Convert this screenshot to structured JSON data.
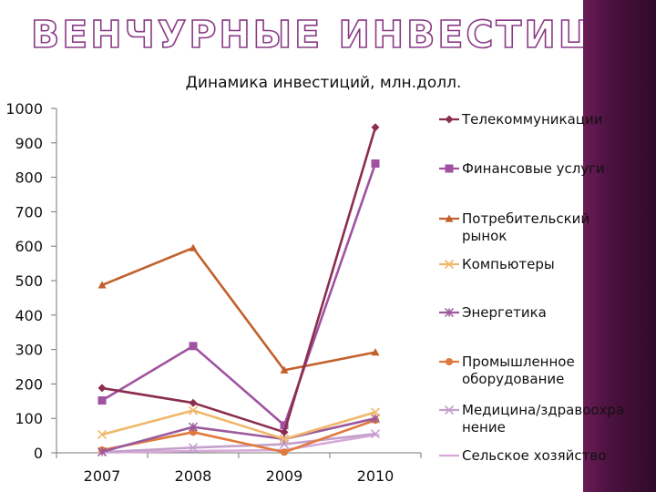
{
  "slide": {
    "title": "ВЕНЧУРНЫЕ ИНВЕСТИЦИИ"
  },
  "colors": {
    "side_band": "#4c1240",
    "title_outline": "#8a3a86"
  },
  "chart_data": {
    "type": "line",
    "title": "Динамика инвестиций, млн.долл.",
    "categories": [
      "2007",
      "2008",
      "2009",
      "2010"
    ],
    "ylim": [
      0,
      1000
    ],
    "yticks": [
      "0",
      "100",
      "200",
      "300",
      "400",
      "500",
      "600",
      "700",
      "800",
      "900",
      "1000"
    ],
    "grid": false,
    "legend_position": "right",
    "series": [
      {
        "name": "Телекоммуникации",
        "color": "#8b2d4f",
        "marker": "diamond",
        "values": [
          188,
          145,
          60,
          945
        ]
      },
      {
        "name": "Финансовые услуги",
        "color": "#a052a0",
        "marker": "square",
        "values": [
          152,
          310,
          80,
          840
        ]
      },
      {
        "name": "Потребительский рынок",
        "color": "#c2602c",
        "marker": "triangle",
        "values": [
          487,
          595,
          240,
          292
        ]
      },
      {
        "name": "Компьютеры",
        "color": "#f0b86a",
        "marker": "x",
        "values": [
          53,
          123,
          40,
          118
        ]
      },
      {
        "name": "Энергетика",
        "color": "#9b5a9b",
        "marker": "star",
        "values": [
          3,
          75,
          40,
          100
        ]
      },
      {
        "name": "Промышленное оборудование",
        "color": "#e07a3c",
        "marker": "circle",
        "values": [
          8,
          60,
          2,
          95
        ]
      },
      {
        "name": "Медицина/здравоохранение",
        "color": "#c4a0cc",
        "marker": "x",
        "values": [
          2,
          15,
          25,
          55
        ]
      },
      {
        "name": "Сельское хозяйство",
        "color": "#d8a8d8",
        "marker": "dash",
        "values": [
          1,
          5,
          8,
          52
        ]
      }
    ]
  }
}
